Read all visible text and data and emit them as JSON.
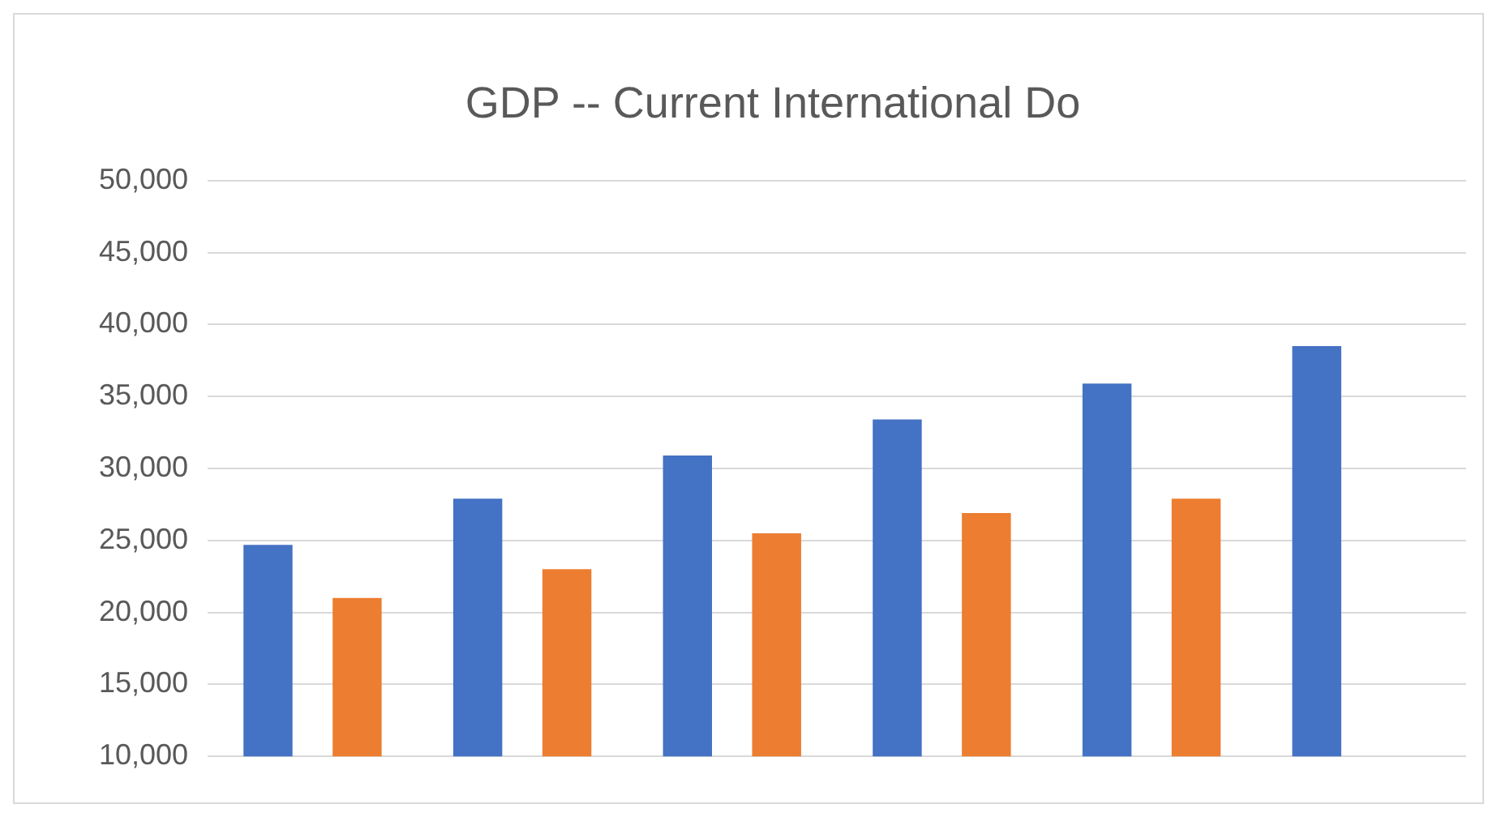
{
  "chart_data": {
    "type": "bar",
    "title": "GDP -- Current International Do",
    "categories": [
      null,
      null,
      null,
      null,
      null,
      null
    ],
    "series": [
      {
        "color": "#4472c4",
        "values": [
          24700,
          27900,
          30900,
          33400,
          35900,
          38500
        ]
      },
      {
        "color": "#ed7d31",
        "values": [
          21000,
          23000,
          25500,
          26900,
          27900,
          null
        ]
      }
    ],
    "ylim": [
      10000,
      50000
    ],
    "yticks": [
      {
        "value": 10000,
        "label": "10,000"
      },
      {
        "value": 15000,
        "label": "15,000"
      },
      {
        "value": 20000,
        "label": "20,000"
      },
      {
        "value": 25000,
        "label": "25,000"
      },
      {
        "value": 30000,
        "label": "30,000"
      },
      {
        "value": 35000,
        "label": "35,000"
      },
      {
        "value": 40000,
        "label": "40,000"
      },
      {
        "value": 45000,
        "label": "45,000"
      },
      {
        "value": 50000,
        "label": "50,000"
      }
    ],
    "grid": "y"
  }
}
